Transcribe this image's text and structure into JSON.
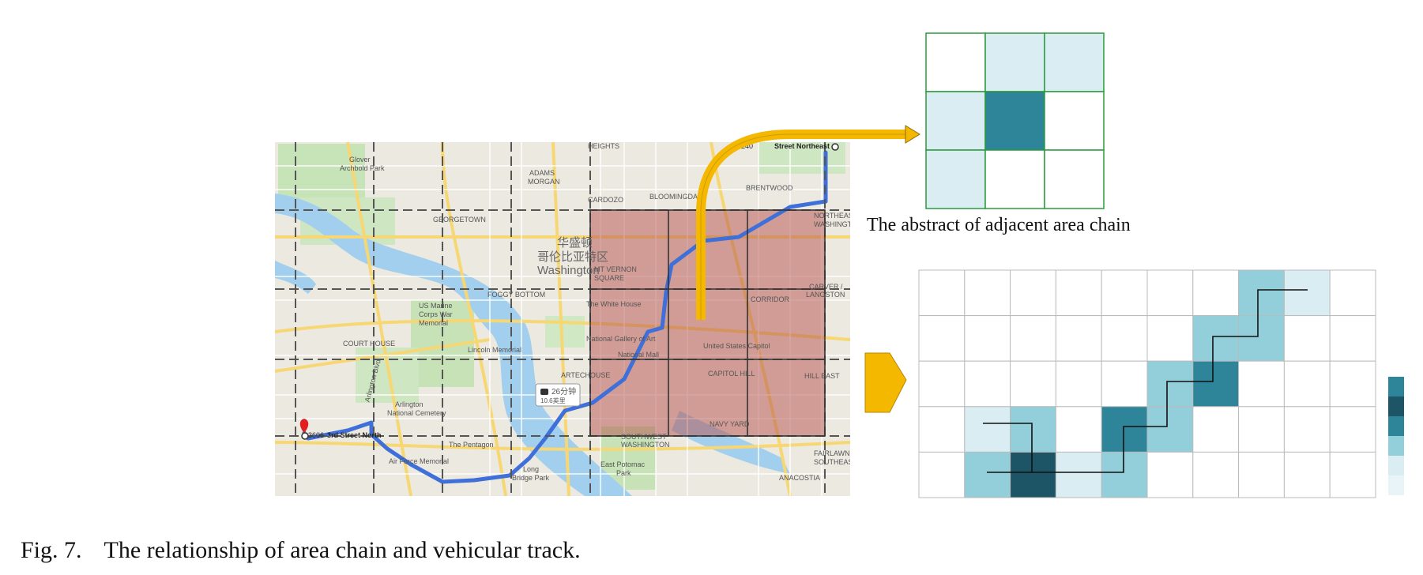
{
  "caption": {
    "number": "Fig. 7.",
    "text": "The relationship of area chain and vehicular track."
  },
  "adjacent_chain": {
    "title": "The abstract of adjacent area chain",
    "rows": 3,
    "cols": 3,
    "cell_levels": [
      [
        0,
        1,
        1
      ],
      [
        1,
        3,
        0
      ],
      [
        1,
        0,
        0
      ]
    ]
  },
  "area_chain": {
    "rows": 5,
    "cols": 10,
    "cell_levels": [
      [
        0,
        0,
        0,
        0,
        0,
        0,
        0,
        2,
        1,
        0
      ],
      [
        0,
        0,
        0,
        0,
        0,
        0,
        2,
        2,
        0,
        0
      ],
      [
        0,
        0,
        0,
        0,
        0,
        2,
        3,
        0,
        0,
        0
      ],
      [
        0,
        1,
        2,
        0,
        3,
        2,
        0,
        0,
        0,
        0
      ],
      [
        0,
        2,
        4,
        1,
        2,
        0,
        0,
        0,
        0,
        0
      ]
    ]
  },
  "palette": {
    "levels": [
      "#ffffff",
      "#d9edf3",
      "#93cedb",
      "#2e8499",
      "#1e5566"
    ],
    "grid_line": "#bbbbbb",
    "adjacent_border": "#2b9a3c",
    "arrow": "#f5b800",
    "highlight": "#b34f4a"
  },
  "map": {
    "labels": [
      {
        "text": "Glover",
        "id": "glover"
      },
      {
        "text": "Archbold Park",
        "id": "archbold"
      },
      {
        "text": "ADAMS",
        "id": "adams"
      },
      {
        "text": "MORGAN",
        "id": "morgan"
      },
      {
        "text": "BLOOMINGDALE",
        "id": "bloomingdale"
      },
      {
        "text": "BRENTWOOD",
        "id": "brentwood"
      },
      {
        "text": "CARDOZO",
        "id": "cardozo"
      },
      {
        "text": "HEIGHTS",
        "id": "heights"
      },
      {
        "text": "GEORGETOWN",
        "id": "georgetown"
      },
      {
        "text": "华盛顿",
        "id": "cn1"
      },
      {
        "text": "哥伦比亚特区",
        "id": "cn2"
      },
      {
        "text": "Washington",
        "id": "washington"
      },
      {
        "text": "MT VERNON",
        "id": "mtvernon"
      },
      {
        "text": "SQUARE",
        "id": "square"
      },
      {
        "text": "FOGGY BOTTOM",
        "id": "foggy"
      },
      {
        "text": "The White House",
        "id": "whitehouse"
      },
      {
        "text": "US Marine",
        "id": "usmarine"
      },
      {
        "text": "Corps War",
        "id": "corpswar"
      },
      {
        "text": "Memorial",
        "id": "memorial"
      },
      {
        "text": "COURT HOUSE",
        "id": "courthouse"
      },
      {
        "text": "Lincoln Memorial",
        "id": "lincoln"
      },
      {
        "text": "National Gallery of Art",
        "id": "gallery"
      },
      {
        "text": "National Mall",
        "id": "mall"
      },
      {
        "text": "United States Capitol",
        "id": "capitol"
      },
      {
        "text": "CAPITOL HILL",
        "id": "capitolhill"
      },
      {
        "text": "HILL EAST",
        "id": "hilleast"
      },
      {
        "text": "ARTECHOUSE",
        "id": "artechouse"
      },
      {
        "text": "NAVY YARD",
        "id": "navyyard"
      },
      {
        "text": "SOUTHWEST",
        "id": "southwest"
      },
      {
        "text": "WASHINGTON",
        "id": "swwashington"
      },
      {
        "text": "Arlington",
        "id": "arlington"
      },
      {
        "text": "National Cemetery",
        "id": "cemetery"
      },
      {
        "text": "The Pentagon",
        "id": "pentagon"
      },
      {
        "text": "Air Force Memorial",
        "id": "airforce"
      },
      {
        "text": "East Potomac",
        "id": "eastpotomac"
      },
      {
        "text": "Park",
        "id": "park"
      },
      {
        "text": "Long",
        "id": "long"
      },
      {
        "text": "Bridge Park",
        "id": "bridgepark"
      },
      {
        "text": "FAIRLAWN",
        "id": "fairlawn"
      },
      {
        "text": "SOUTHEAST",
        "id": "southeast"
      },
      {
        "text": "ANACOSTIA",
        "id": "anacostia"
      },
      {
        "text": "3rd Street North",
        "id": "thirdnorth"
      },
      {
        "text": "3606",
        "id": "n3606"
      },
      {
        "text": "Street Northeast",
        "id": "streetne"
      },
      {
        "text": "240",
        "id": "n240"
      },
      {
        "text": "CARVER /",
        "id": "carver"
      },
      {
        "text": "LANGSTON",
        "id": "langston"
      },
      {
        "text": "NORTHEAST",
        "id": "northeast"
      },
      {
        "text": "WASHINGTON",
        "id": "newashington"
      },
      {
        "text": "CORRIDOR",
        "id": "corridor"
      },
      {
        "text": "Arlington Blvd",
        "id": "arlblvd"
      }
    ],
    "route_badge": {
      "time": "26分钟",
      "distance": "10.6英里"
    }
  }
}
